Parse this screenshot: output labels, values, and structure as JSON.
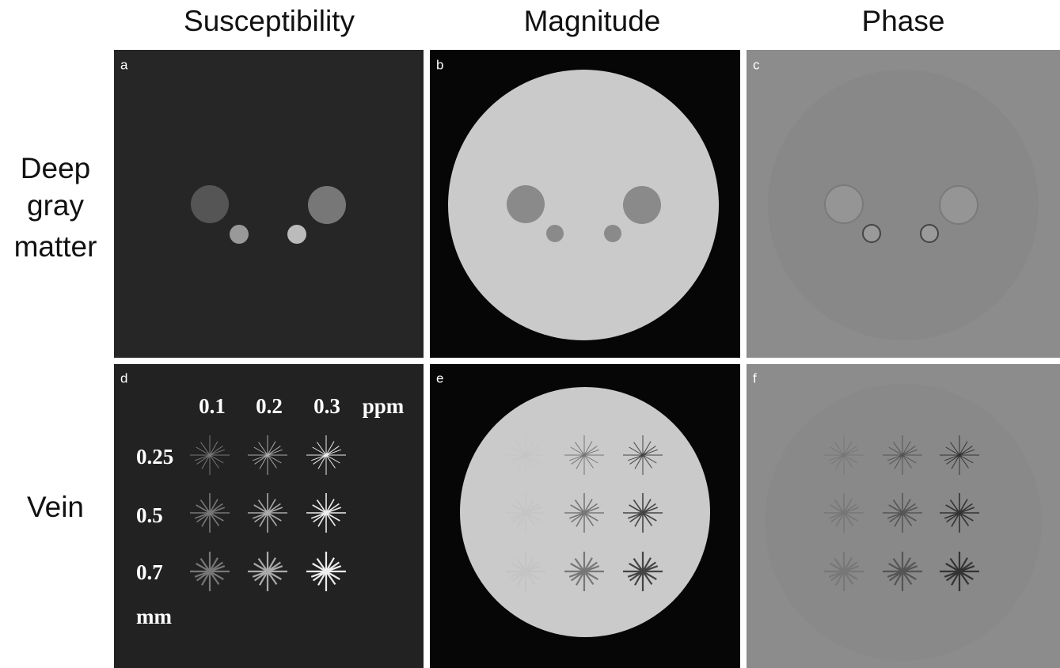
{
  "columns": [
    "Susceptibility",
    "Magnitude",
    "Phase"
  ],
  "rows": [
    {
      "lines": [
        "Deep",
        "gray",
        "matter"
      ]
    },
    {
      "lines": [
        "Vein"
      ]
    }
  ],
  "panels": [
    "a",
    "b",
    "c",
    "d",
    "e",
    "f"
  ],
  "vein_panel": {
    "susceptibilities": [
      "0.1",
      "0.2",
      "0.3"
    ],
    "susceptibility_unit": "ppm",
    "diameters": [
      "0.25",
      "0.5",
      "0.7"
    ],
    "diameter_unit": "mm"
  }
}
